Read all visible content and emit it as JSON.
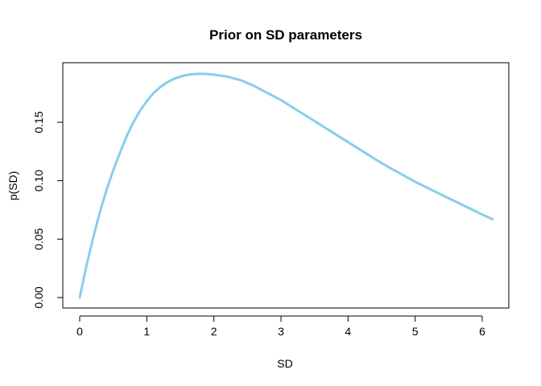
{
  "chart_data": {
    "type": "line",
    "title": "Prior on SD parameters",
    "xlabel": "SD",
    "ylabel": "p(SD)",
    "xlim": [
      0,
      6.15
    ],
    "ylim": [
      0,
      0.1915
    ],
    "x_ticks": [
      "0",
      "1",
      "2",
      "3",
      "4",
      "5",
      "6"
    ],
    "y_ticks": [
      "0.00",
      "0.05",
      "0.10",
      "0.15"
    ],
    "grid": false,
    "legend": "none",
    "series": [
      {
        "color": "#87CEEB",
        "x": [
          0,
          0.1,
          0.2,
          0.3,
          0.4,
          0.5,
          0.6,
          0.7,
          0.8,
          0.9,
          1.0,
          1.1,
          1.2,
          1.3,
          1.4,
          1.5,
          1.6,
          1.7,
          1.8,
          1.9,
          2.0,
          2.2,
          2.4,
          2.6,
          2.8,
          3.0,
          3.25,
          3.5,
          3.75,
          4.0,
          4.25,
          4.5,
          4.75,
          5.0,
          5.25,
          5.5,
          5.75,
          6.0,
          6.15
        ],
        "y": [
          0.0,
          0.027,
          0.051,
          0.073,
          0.092,
          0.109,
          0.124,
          0.138,
          0.15,
          0.16,
          0.168,
          0.175,
          0.18,
          0.184,
          0.187,
          0.189,
          0.1905,
          0.1912,
          0.1914,
          0.1913,
          0.1908,
          0.189,
          0.186,
          0.181,
          0.175,
          0.169,
          0.16,
          0.151,
          0.142,
          0.133,
          0.124,
          0.115,
          0.107,
          0.099,
          0.092,
          0.085,
          0.078,
          0.071,
          0.067
        ]
      }
    ]
  }
}
